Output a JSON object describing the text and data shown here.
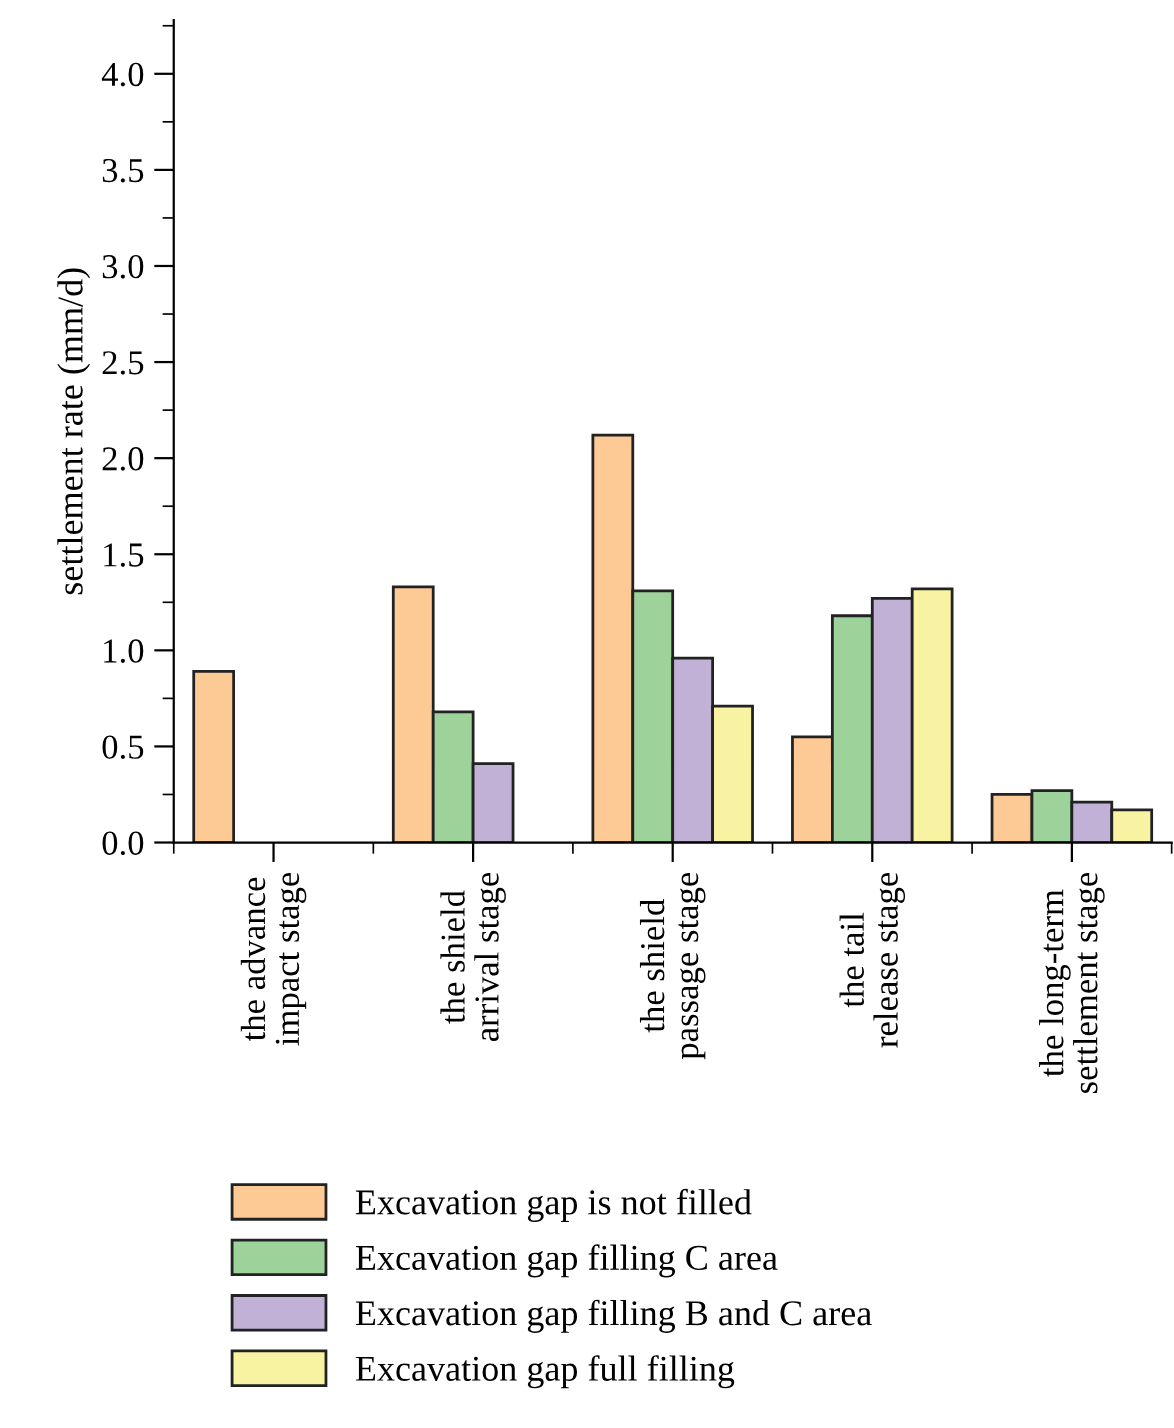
{
  "chart_data": {
    "type": "bar",
    "ylabel": "settlement rate (mm/d)",
    "categories": [
      "the advance\nimpact stage",
      "the shield\narrival stage",
      "the shield\npassage stage",
      "the tail\nrelease stage",
      "the long-term\nsettlement stage"
    ],
    "series": [
      {
        "name": "Excavation gap is not filled",
        "color": "#fdca96",
        "values": [
          0.89,
          1.33,
          2.12,
          0.55,
          0.25
        ]
      },
      {
        "name": "Excavation gap filling C area",
        "color": "#9ed29b",
        "values": [
          null,
          0.68,
          1.31,
          1.18,
          0.27
        ]
      },
      {
        "name": "Excavation gap filling B and C area",
        "color": "#c2b1d6",
        "values": [
          null,
          0.41,
          0.96,
          1.27,
          0.21
        ]
      },
      {
        "name": "Excavation gap full filling",
        "color": "#f7f3a3",
        "values": [
          null,
          null,
          0.71,
          1.32,
          0.17
        ]
      }
    ],
    "ylim": [
      0,
      4.28
    ],
    "yticks": [
      {
        "value": 0,
        "label": "0.0"
      },
      0.5,
      {
        "value": 1,
        "label": "1.0"
      },
      1.5,
      {
        "value": 2,
        "label": "2.0"
      },
      2.5,
      {
        "value": 3,
        "label": "3.0"
      },
      3.5,
      {
        "value": 4,
        "label": "4.0"
      }
    ],
    "grid": false,
    "legend": "bottom"
  }
}
